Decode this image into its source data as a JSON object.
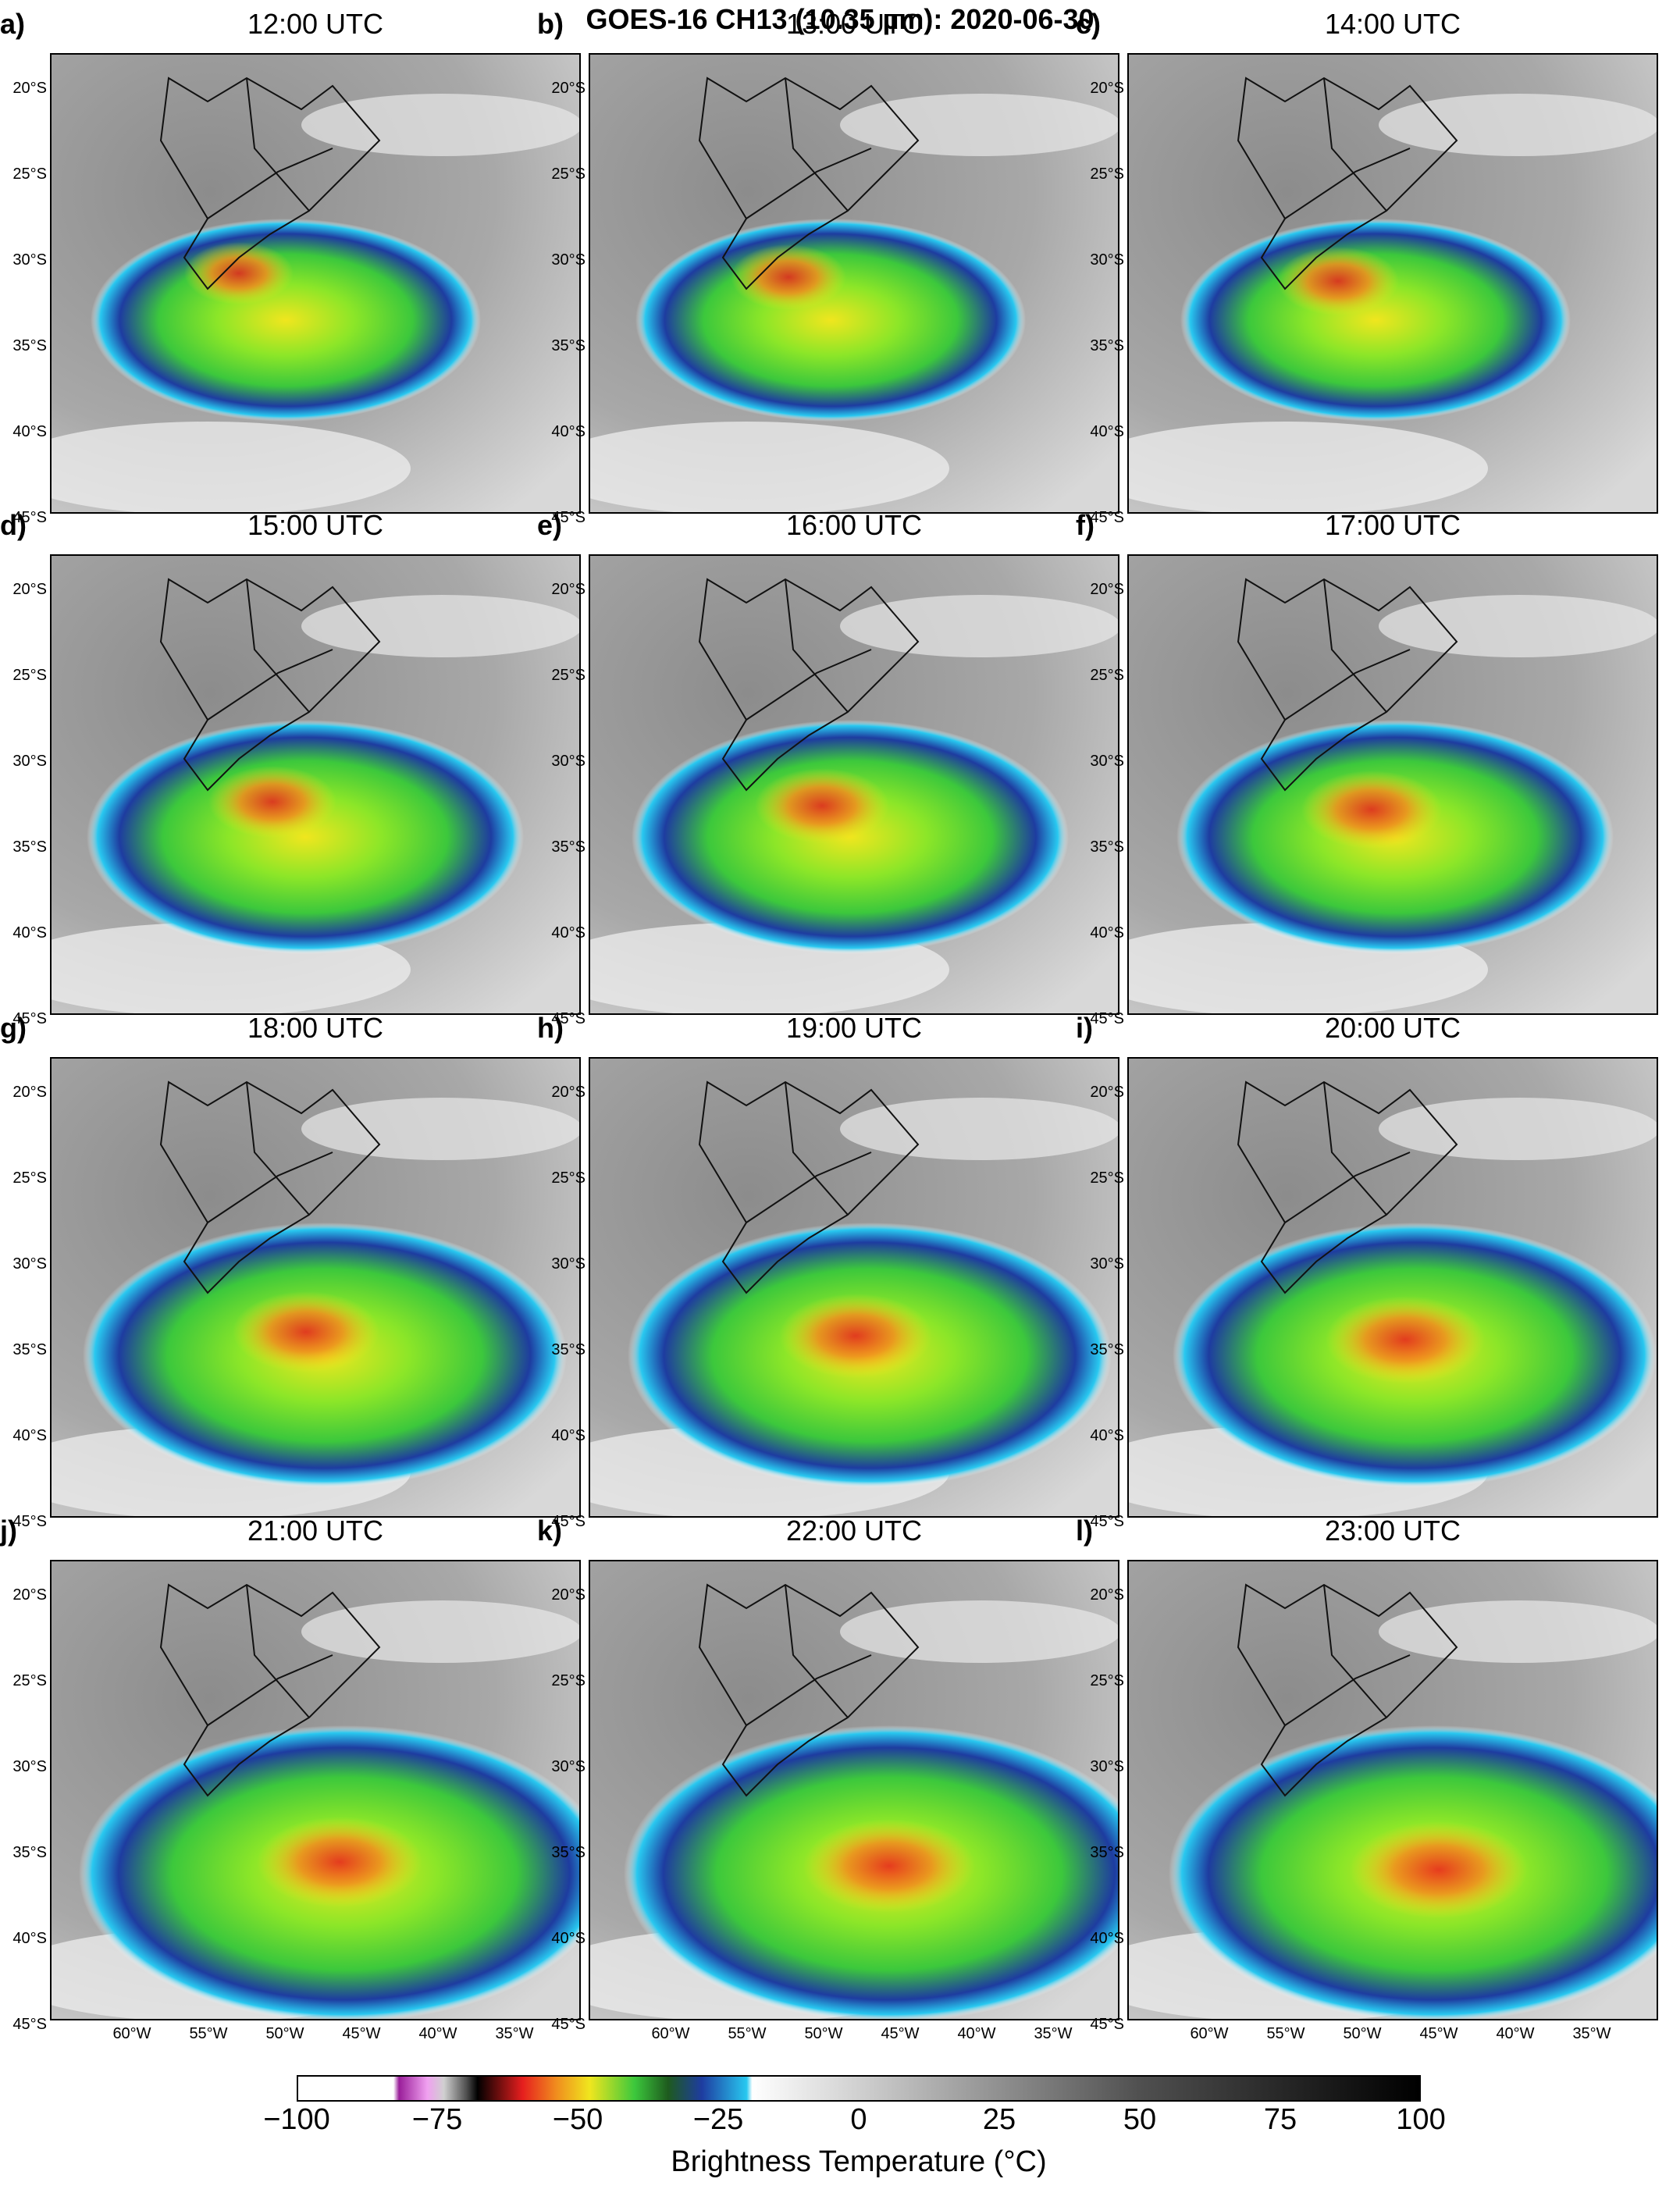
{
  "title": "GOES-16 CH13 (10.35 µm): 2020-06-30",
  "panels": [
    {
      "label": "a)",
      "time": "12:00 UTC"
    },
    {
      "label": "b)",
      "time": "13:00 UTC"
    },
    {
      "label": "c)",
      "time": "14:00 UTC"
    },
    {
      "label": "d)",
      "time": "15:00 UTC"
    },
    {
      "label": "e)",
      "time": "16:00 UTC"
    },
    {
      "label": "f)",
      "time": "17:00 UTC"
    },
    {
      "label": "g)",
      "time": "18:00 UTC"
    },
    {
      "label": "h)",
      "time": "19:00 UTC"
    },
    {
      "label": "i)",
      "time": "20:00 UTC"
    },
    {
      "label": "j)",
      "time": "21:00 UTC"
    },
    {
      "label": "k)",
      "time": "22:00 UTC"
    },
    {
      "label": "l)",
      "time": "23:00 UTC"
    }
  ],
  "lat_labels": [
    "20°S",
    "25°S",
    "30°S",
    "35°S",
    "40°S",
    "45°S"
  ],
  "lon_labels": [
    "60°W",
    "55°W",
    "50°W",
    "45°W",
    "40°W",
    "35°W"
  ],
  "colorbar": {
    "title": "Brightness Temperature (°C)",
    "ticks": [
      "−100",
      "−75",
      "−50",
      "−25",
      "0",
      "25",
      "50",
      "75",
      "100"
    ],
    "colors": {
      "cold_magenta": "#c81ec8",
      "red": "#e61e1e",
      "orange": "#f08c1e",
      "yellow": "#f0e61e",
      "green": "#3cc83c",
      "blue": "#1e3ca0",
      "cyan": "#28c8f0",
      "white": "#ffffff",
      "gray": "#969696",
      "black": "#000000"
    }
  }
}
